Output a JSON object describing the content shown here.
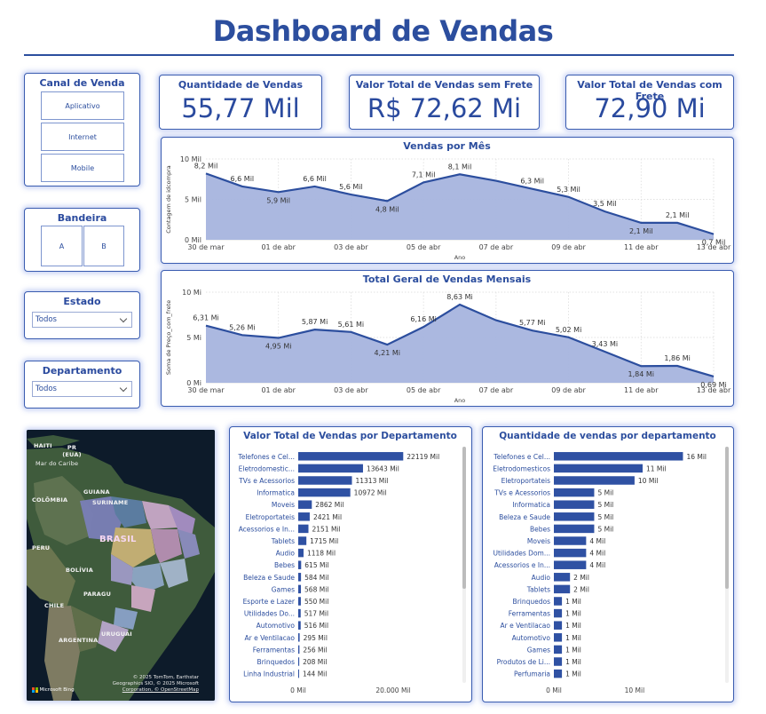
{
  "header": {
    "title": "Dashboard de Vendas"
  },
  "colors": {
    "accent": "#2c4e9e",
    "area_fill": "#a7b4de",
    "bar": "#2f51a3"
  },
  "slicers": {
    "canal": {
      "title": "Canal de Venda",
      "options": [
        "Aplicativo",
        "Internet",
        "Mobile"
      ]
    },
    "bandeira": {
      "title": "Bandeira",
      "options": [
        "A",
        "B"
      ]
    },
    "estado": {
      "title": "Estado",
      "selected": "Todos"
    },
    "departamento": {
      "title": "Departamento",
      "selected": "Todos"
    }
  },
  "kpis": {
    "quantidade": {
      "label": "Quantidade de Vendas",
      "value": "55,77 Mil"
    },
    "sem_frete": {
      "label": "Valor Total de Vendas sem Frete",
      "value": "R$ 72,62 Mi"
    },
    "com_frete": {
      "label": "Valor Total de Vendas com Frete",
      "value": "72,90 Mi"
    }
  },
  "map": {
    "labels": [
      "HAITI",
      "PR (EUA)",
      "Mar do Caribe",
      "COLÔMBIA",
      "GUIANA",
      "SURINAME",
      "PERU",
      "BRASIL",
      "BOLÍVIA",
      "PARAGU",
      "CHILE",
      "URUGUAI",
      "ARGENTINA"
    ],
    "attribution": [
      "© 2025 TomTom, Earthstar",
      "Geographics SIO, © 2025 Microsoft",
      "Corporation, © OpenStreetMap"
    ],
    "logo": "Microsoft Bing"
  },
  "chart_data": [
    {
      "type": "area",
      "title": "Vendas por Mês",
      "xlabel": "Ano",
      "ylabel": "Contagem de idcompra",
      "yticks": [
        "0 Mil",
        "5 Mil",
        "10 Mil"
      ],
      "ylim": [
        0,
        10
      ],
      "xticks": [
        "30 de mar",
        "01 de abr",
        "03 de abr",
        "05 de abr",
        "07 de abr",
        "09 de abr",
        "11 de abr",
        "13 de abr"
      ],
      "x": [
        "30 de mar",
        "31 de mar",
        "01 de abr",
        "02 de abr",
        "03 de abr",
        "04 de abr",
        "05 de abr",
        "06 de abr",
        "07 de abr",
        "08 de abr",
        "09 de abr",
        "10 de abr",
        "11 de abr",
        "12 de abr",
        "13 de abr"
      ],
      "values": [
        8.2,
        6.6,
        5.9,
        6.6,
        5.6,
        4.8,
        7.1,
        8.1,
        7.3,
        6.3,
        5.3,
        3.5,
        2.1,
        2.1,
        0.7
      ],
      "data_labels": [
        "8,2 Mil",
        "6,6 Mil",
        "5,9 Mil",
        "6,6 Mil",
        "5,6 Mil",
        "4,8 Mil",
        "7,1 Mil",
        "8,1 Mil",
        "",
        "6,3 Mil",
        "5,3 Mil",
        "3,5 Mil",
        "2,1 Mil",
        "2,1 Mil",
        "0,7 Mil"
      ]
    },
    {
      "type": "area",
      "title": "Total Geral de Vendas Mensais",
      "xlabel": "Ano",
      "ylabel": "Soma de Preço_com_frete",
      "yticks": [
        "0 Mi",
        "5 Mi",
        "10 Mi"
      ],
      "ylim": [
        0,
        10
      ],
      "xticks": [
        "30 de mar",
        "01 de abr",
        "03 de abr",
        "05 de abr",
        "07 de abr",
        "09 de abr",
        "11 de abr",
        "13 de abr"
      ],
      "x": [
        "30 de mar",
        "31 de mar",
        "01 de abr",
        "02 de abr",
        "03 de abr",
        "04 de abr",
        "05 de abr",
        "06 de abr",
        "07 de abr",
        "08 de abr",
        "09 de abr",
        "10 de abr",
        "11 de abr",
        "12 de abr",
        "13 de abr"
      ],
      "values": [
        6.31,
        5.26,
        4.95,
        5.87,
        5.61,
        4.21,
        6.16,
        8.63,
        6.9,
        5.77,
        5.02,
        3.43,
        1.84,
        1.86,
        0.69
      ],
      "data_labels": [
        "6,31 Mi",
        "5,26 Mi",
        "4,95 Mi",
        "5,87 Mi",
        "5,61 Mi",
        "4,21 Mi",
        "6,16 Mi",
        "8,63 Mi",
        "",
        "5,77 Mi",
        "5,02 Mi",
        "3,43 Mi",
        "1,84 Mi",
        "1,86 Mi",
        "0,69 Mi"
      ]
    },
    {
      "type": "bar",
      "orientation": "horizontal",
      "title": "Valor Total de Vendas por Departamento",
      "xticks": [
        "0 Mil",
        "20.000 Mil"
      ],
      "xlim": [
        0,
        23000
      ],
      "categories": [
        "Telefones e Cel...",
        "Eletrodomestic...",
        "TVs e Acessorios",
        "Informatica",
        "Moveis",
        "Eletroportateis",
        "Acessorios e In...",
        "Tablets",
        "Audio",
        "Bebes",
        "Beleza e Saude",
        "Games",
        "Esporte e Lazer",
        "Utilidades Do...",
        "Automotivo",
        "Ar e Ventilacao",
        "Ferramentas",
        "Brinquedos",
        "Linha Industrial"
      ],
      "values": [
        22119,
        13643,
        11313,
        10972,
        2862,
        2421,
        2151,
        1715,
        1118,
        615,
        584,
        568,
        550,
        517,
        516,
        295,
        256,
        208,
        144
      ],
      "data_labels": [
        "22119 Mil",
        "13643 Mil",
        "11313 Mil",
        "10972 Mil",
        "2862 Mil",
        "2421 Mil",
        "2151 Mil",
        "1715 Mil",
        "1118 Mil",
        "615 Mil",
        "584 Mil",
        "568 Mil",
        "550 Mil",
        "517 Mil",
        "516 Mil",
        "295 Mil",
        "256 Mil",
        "208 Mil",
        "144 Mil"
      ]
    },
    {
      "type": "bar",
      "orientation": "horizontal",
      "title": "Quantidade de vendas por departamento",
      "xticks": [
        "0 Mil",
        "10 Mil"
      ],
      "xlim": [
        0,
        16.5
      ],
      "categories": [
        "Telefones e Cel...",
        "Eletrodomesticos",
        "Eletroportateis",
        "TVs e Acessorios",
        "Informatica",
        "Beleza e Saude",
        "Bebes",
        "Moveis",
        "Utilidades Dom...",
        "Acessorios e In...",
        "Audio",
        "Tablets",
        "Brinquedos",
        "Ferramentas",
        "Ar e Ventilacao",
        "Automotivo",
        "Games",
        "Produtos de Li...",
        "Perfumaria"
      ],
      "values": [
        16,
        11,
        10,
        5,
        5,
        5,
        5,
        4,
        4,
        4,
        2,
        2,
        1,
        1,
        1,
        1,
        1,
        1,
        1
      ],
      "data_labels": [
        "16 Mil",
        "11 Mil",
        "10 Mil",
        "5 Mil",
        "5 Mil",
        "5 Mil",
        "5 Mil",
        "4 Mil",
        "4 Mil",
        "4 Mil",
        "2 Mil",
        "2 Mil",
        "1 Mil",
        "1 Mil",
        "1 Mil",
        "1 Mil",
        "1 Mil",
        "1 Mil",
        "1 Mil"
      ]
    }
  ]
}
